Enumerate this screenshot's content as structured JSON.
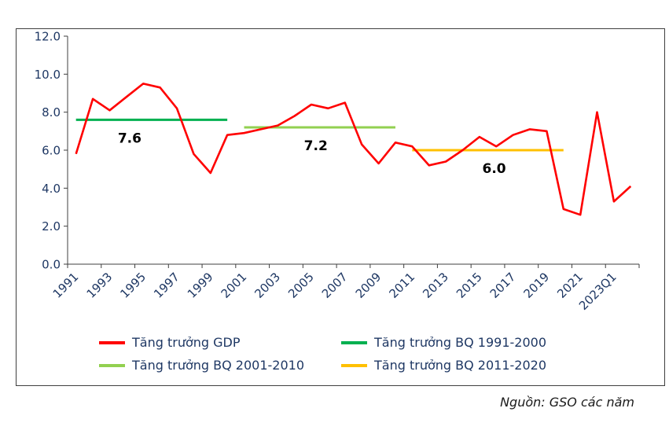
{
  "chart_data": {
    "type": "line",
    "title": "",
    "y_axis": {
      "min": 0,
      "max": 12,
      "tick_interval": 2,
      "tick_labels": [
        "0.0",
        "2.0",
        "4.0",
        "6.0",
        "8.0",
        "10.0",
        "12.0"
      ]
    },
    "x_axis": {
      "visible_tick_labels": [
        "1991",
        "1993",
        "1995",
        "1997",
        "1999",
        "2001",
        "2003",
        "2005",
        "2007",
        "2009",
        "2011",
        "2013",
        "2015",
        "2017",
        "2019",
        "2021",
        "2023Q1"
      ]
    },
    "series": [
      {
        "name": "Tăng trưởng GDP",
        "kind": "line",
        "color": "#FF0000",
        "x": [
          "1991",
          "1992",
          "1993",
          "1994",
          "1995",
          "1996",
          "1997",
          "1998",
          "1999",
          "2000",
          "2001",
          "2002",
          "2003",
          "2004",
          "2005",
          "2006",
          "2007",
          "2008",
          "2009",
          "2010",
          "2011",
          "2012",
          "2013",
          "2014",
          "2015",
          "2016",
          "2017",
          "2018",
          "2019",
          "2020",
          "2021",
          "2022",
          "2023Q1",
          "2023Q2"
        ],
        "values": [
          5.8,
          8.7,
          8.1,
          8.8,
          9.5,
          9.3,
          8.2,
          5.8,
          4.8,
          6.8,
          6.9,
          7.1,
          7.3,
          7.8,
          8.4,
          8.2,
          8.5,
          6.3,
          5.3,
          6.4,
          6.2,
          5.2,
          5.4,
          6.0,
          6.7,
          6.2,
          6.8,
          7.1,
          7.0,
          2.9,
          2.6,
          8.0,
          3.3,
          4.1
        ]
      },
      {
        "name": "Tăng trưởng BQ 1991-2000",
        "kind": "average-line",
        "color": "#00B050",
        "value": 7.6,
        "span": [
          "1991",
          "2000"
        ],
        "label": "7.6"
      },
      {
        "name": "Tăng trưởng BQ 2001-2010",
        "kind": "average-line",
        "color": "#92D050",
        "value": 7.2,
        "span": [
          "2001",
          "2010"
        ],
        "label": "7.2"
      },
      {
        "name": "Tăng trưởng BQ 2011-2020",
        "kind": "average-line",
        "color": "#FFC000",
        "value": 6.0,
        "span": [
          "2011",
          "2020"
        ],
        "label": "6.0"
      }
    ],
    "legend": [
      "Tăng trưởng GDP",
      "Tăng trưởng BQ 1991-2000",
      "Tăng trưởng BQ 2001-2010",
      "Tăng trưởng BQ 2011-2020"
    ],
    "legend_position": "bottom",
    "grid": false,
    "source_note": "Nguồn: GSO các năm"
  },
  "colors": {
    "axis_text": "#1F3864",
    "axis_line": "#3f3f3f",
    "annotation": "#000000"
  }
}
